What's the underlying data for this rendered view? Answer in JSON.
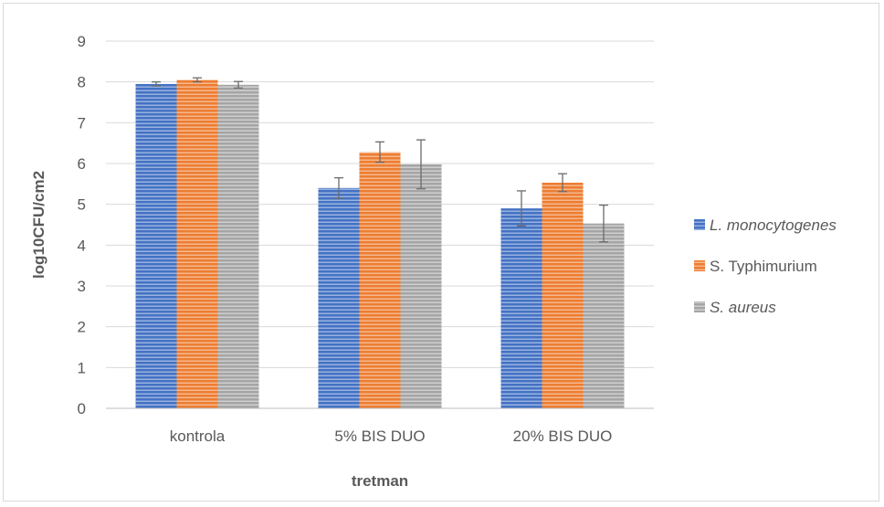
{
  "chart_data": {
    "type": "bar",
    "title": "",
    "xlabel": "tretman",
    "ylabel": "log10CFU/cm2",
    "ylim": [
      0,
      9
    ],
    "yticks": [
      0,
      1,
      2,
      3,
      4,
      5,
      6,
      7,
      8,
      9
    ],
    "grid": true,
    "legend_position": "right",
    "categories": [
      "kontrola",
      "5% BIS DUO",
      "20% BIS DUO"
    ],
    "series": [
      {
        "name": "L. monocytogenes",
        "italic": true,
        "color": "#4472c4",
        "values": [
          7.95,
          5.4,
          4.9
        ],
        "errors": [
          0.05,
          0.25,
          0.43
        ]
      },
      {
        "name": "S. Typhimurium",
        "italic": false,
        "color": "#ed7d31",
        "values": [
          8.05,
          6.28,
          5.53
        ],
        "errors": [
          0.05,
          0.25,
          0.22
        ]
      },
      {
        "name": "S. aureus",
        "italic": true,
        "color": "#a5a5a5",
        "values": [
          7.93,
          5.98,
          4.53
        ],
        "errors": [
          0.08,
          0.6,
          0.45
        ]
      }
    ]
  }
}
